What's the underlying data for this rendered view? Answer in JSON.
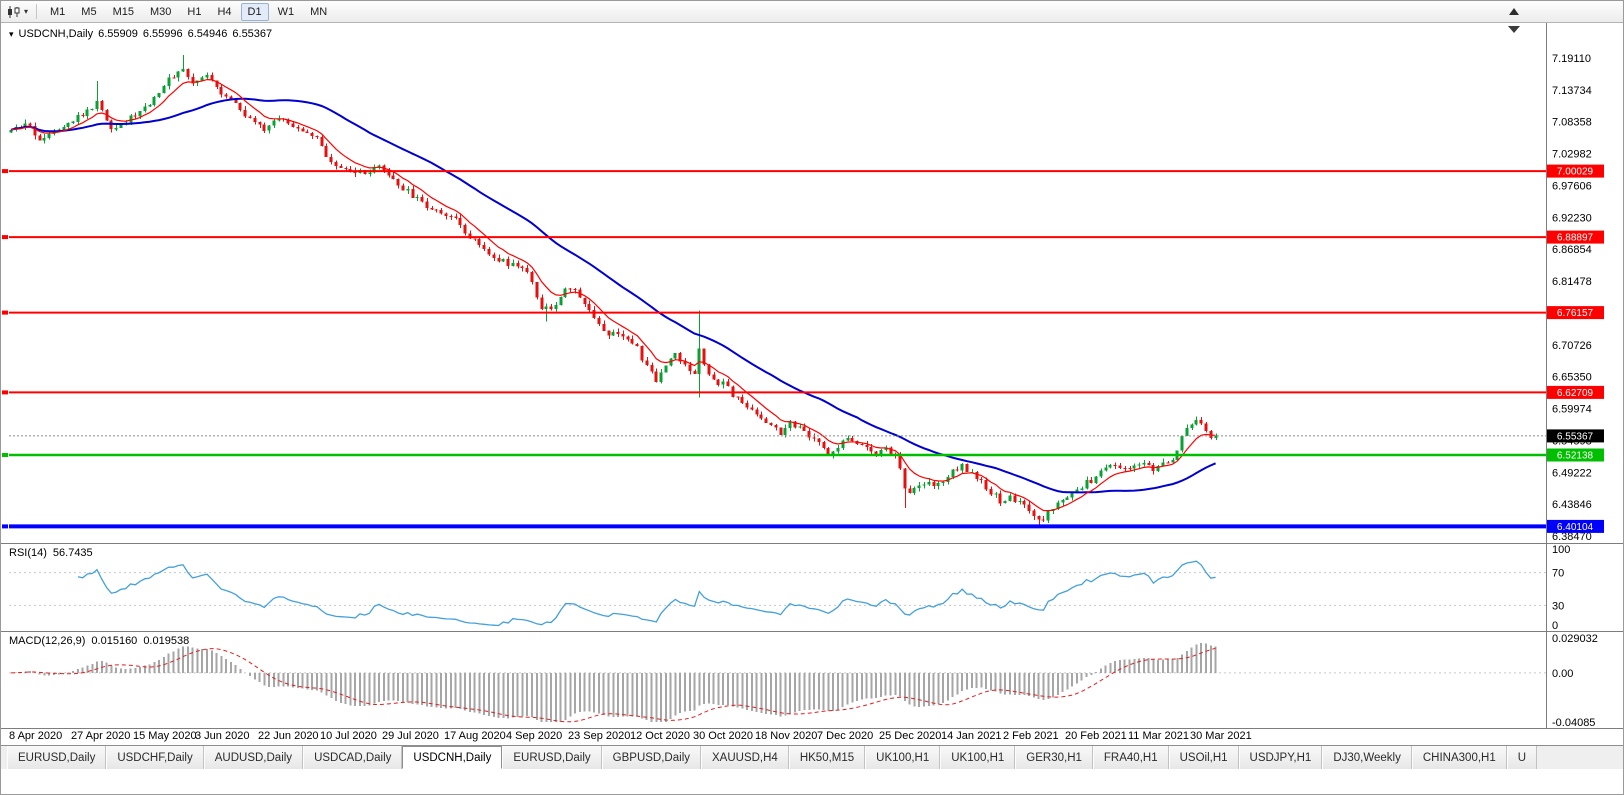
{
  "toolbar": {
    "timeframes": [
      {
        "label": "M1"
      },
      {
        "label": "M5"
      },
      {
        "label": "M15"
      },
      {
        "label": "M30"
      },
      {
        "label": "H1"
      },
      {
        "label": "H4"
      },
      {
        "label": "D1"
      },
      {
        "label": "W1"
      },
      {
        "label": "MN"
      }
    ],
    "active_timeframe": "D1"
  },
  "quote": {
    "symbol_period": "USDCNH,Daily",
    "open": "6.55909",
    "high": "6.55996",
    "low": "6.54946",
    "close": "6.55367"
  },
  "indicators": {
    "rsi": {
      "name": "RSI(14)",
      "value": "56.7435",
      "levels": [
        "100",
        "70",
        "30",
        "0"
      ],
      "color": "#44A0DC"
    },
    "macd": {
      "name": "MACD(12,26,9)",
      "value_main": "0.015160",
      "value_signal": "0.019538",
      "axis_labels": [
        "0.029032",
        "0.00",
        "-0.04085"
      ],
      "axis_max": 0.029032,
      "axis_min": -0.04085
    }
  },
  "chart_data": {
    "type": "candlestick",
    "symbol": "USDCNH",
    "period": "Daily",
    "num_candles": 253,
    "current_price": 6.55367,
    "y_axis_top_label_value": 7.1911,
    "y_axis_step": 0.05376,
    "y_axis_labels": [
      "7.19110",
      "7.13734",
      "7.08358",
      "7.02982",
      "6.97606",
      "6.92230",
      "6.86854",
      "6.81478",
      "6.76102",
      "6.70726",
      "6.65350",
      "6.59974",
      "6.54598",
      "6.49222",
      "6.43846",
      "6.38470"
    ],
    "x_axis_labels": [
      "8 Apr 2020",
      "27 Apr 2020",
      "15 May 2020",
      "3 Jun 2020",
      "22 Jun 2020",
      "10 Jul 2020",
      "29 Jul 2020",
      "17 Aug 2020",
      "4 Sep 2020",
      "23 Sep 2020",
      "12 Oct 2020",
      "30 Oct 2020",
      "18 Nov 2020",
      "7 Dec 2020",
      "25 Dec 2020",
      "14 Jan 2021",
      "2 Feb 2021",
      "20 Feb 2021",
      "11 Mar 2021",
      "30 Mar 2021"
    ],
    "candles_per_x_label": 13,
    "up_color": "#09A134",
    "down_color": "#E31212",
    "ma_fast": {
      "period": 8,
      "color": "#FF0000"
    },
    "ma_slow": {
      "period": 34,
      "color": "#0000D0"
    },
    "horizontal_lines": [
      {
        "value": 7.00029,
        "label": "7.00029",
        "color": "#FF0000",
        "width": 2
      },
      {
        "value": 6.88897,
        "label": "6.88897",
        "color": "#FF0000",
        "width": 2
      },
      {
        "value": 6.76157,
        "label": "6.76157",
        "color": "#FF0000",
        "width": 2
      },
      {
        "value": 6.62709,
        "label": "6.62709",
        "color": "#FF0000",
        "width": 2
      },
      {
        "value": 6.52138,
        "label": "6.52138",
        "color": "#00BF00",
        "width": 2.5
      },
      {
        "value": 6.40104,
        "label": "6.40104",
        "color": "#0000FF",
        "width": 4
      }
    ],
    "current_price_tag": {
      "label": "6.55367",
      "color": "#000000"
    },
    "price_path": [
      [
        0,
        7.065
      ],
      [
        3,
        7.08
      ],
      [
        6,
        7.055
      ],
      [
        9,
        7.07
      ],
      [
        12,
        7.085
      ],
      [
        15,
        7.095
      ],
      [
        18,
        7.115
      ],
      [
        21,
        7.075
      ],
      [
        24,
        7.085
      ],
      [
        27,
        7.1
      ],
      [
        30,
        7.125
      ],
      [
        33,
        7.155
      ],
      [
        36,
        7.175
      ],
      [
        38,
        7.145
      ],
      [
        41,
        7.165
      ],
      [
        44,
        7.135
      ],
      [
        47,
        7.115
      ],
      [
        50,
        7.085
      ],
      [
        53,
        7.07
      ],
      [
        56,
        7.09
      ],
      [
        59,
        7.075
      ],
      [
        62,
        7.068
      ],
      [
        64,
        7.06
      ],
      [
        66,
        7.02
      ],
      [
        68,
        7.005
      ],
      [
        71,
        7.0
      ],
      [
        74,
        6.995
      ],
      [
        77,
        7.005
      ],
      [
        80,
        6.985
      ],
      [
        83,
        6.965
      ],
      [
        86,
        6.945
      ],
      [
        89,
        6.935
      ],
      [
        92,
        6.925
      ],
      [
        95,
        6.9
      ],
      [
        98,
        6.875
      ],
      [
        101,
        6.855
      ],
      [
        104,
        6.845
      ],
      [
        107,
        6.835
      ],
      [
        109,
        6.815
      ],
      [
        111,
        6.77
      ],
      [
        113,
        6.765
      ],
      [
        115,
        6.79
      ],
      [
        117,
        6.805
      ],
      [
        119,
        6.79
      ],
      [
        121,
        6.765
      ],
      [
        123,
        6.745
      ],
      [
        125,
        6.725
      ],
      [
        127,
        6.73
      ],
      [
        129,
        6.715
      ],
      [
        131,
        6.7
      ],
      [
        133,
        6.67
      ],
      [
        135,
        6.645
      ],
      [
        137,
        6.675
      ],
      [
        139,
        6.695
      ],
      [
        141,
        6.67
      ],
      [
        143,
        6.655
      ],
      [
        144,
        6.7
      ],
      [
        145,
        6.675
      ],
      [
        147,
        6.65
      ],
      [
        149,
        6.64
      ],
      [
        151,
        6.625
      ],
      [
        153,
        6.61
      ],
      [
        155,
        6.6
      ],
      [
        157,
        6.585
      ],
      [
        159,
        6.57
      ],
      [
        161,
        6.56
      ],
      [
        163,
        6.575
      ],
      [
        165,
        6.565
      ],
      [
        167,
        6.55
      ],
      [
        169,
        6.54
      ],
      [
        171,
        6.525
      ],
      [
        173,
        6.535
      ],
      [
        175,
        6.55
      ],
      [
        177,
        6.545
      ],
      [
        179,
        6.53
      ],
      [
        181,
        6.525
      ],
      [
        183,
        6.53
      ],
      [
        185,
        6.52
      ],
      [
        186,
        6.5
      ],
      [
        187,
        6.47
      ],
      [
        188,
        6.455
      ],
      [
        189,
        6.46
      ],
      [
        191,
        6.475
      ],
      [
        193,
        6.47
      ],
      [
        195,
        6.48
      ],
      [
        197,
        6.495
      ],
      [
        199,
        6.505
      ],
      [
        201,
        6.49
      ],
      [
        203,
        6.475
      ],
      [
        205,
        6.46
      ],
      [
        207,
        6.445
      ],
      [
        209,
        6.45
      ],
      [
        211,
        6.44
      ],
      [
        213,
        6.425
      ],
      [
        215,
        6.41
      ],
      [
        216,
        6.408
      ],
      [
        217,
        6.425
      ],
      [
        219,
        6.44
      ],
      [
        221,
        6.445
      ],
      [
        223,
        6.465
      ],
      [
        225,
        6.475
      ],
      [
        227,
        6.485
      ],
      [
        229,
        6.5
      ],
      [
        231,
        6.505
      ],
      [
        233,
        6.5
      ],
      [
        235,
        6.505
      ],
      [
        237,
        6.51
      ],
      [
        239,
        6.5
      ],
      [
        241,
        6.505
      ],
      [
        243,
        6.515
      ],
      [
        244,
        6.53
      ],
      [
        245,
        6.55
      ],
      [
        246,
        6.565
      ],
      [
        247,
        6.575
      ],
      [
        248,
        6.578
      ],
      [
        249,
        6.57
      ],
      [
        250,
        6.558
      ],
      [
        251,
        6.548
      ],
      [
        252,
        6.5537
      ]
    ],
    "wick_events": [
      {
        "i": 18,
        "h": 7.152
      },
      {
        "i": 36,
        "h": 7.196
      },
      {
        "i": 112,
        "l": 6.747
      },
      {
        "i": 144,
        "h": 6.765,
        "l": 6.618
      },
      {
        "i": 187,
        "l": 6.432
      },
      {
        "i": 215,
        "l": 6.401
      },
      {
        "i": 248,
        "h": 6.586
      }
    ]
  },
  "tabs": {
    "items": [
      {
        "label": "EURUSD,Daily"
      },
      {
        "label": "USDCHF,Daily"
      },
      {
        "label": "AUDUSD,Daily"
      },
      {
        "label": "USDCAD,Daily"
      },
      {
        "label": "USDCNH,Daily"
      },
      {
        "label": "EURUSD,Daily"
      },
      {
        "label": "GBPUSD,Daily"
      },
      {
        "label": "XAUUSD,H4"
      },
      {
        "label": "HK50,M15"
      },
      {
        "label": "UK100,H1"
      },
      {
        "label": "UK100,H1"
      },
      {
        "label": "GER30,H1"
      },
      {
        "label": "FRA40,H1"
      },
      {
        "label": "USOil,H1"
      },
      {
        "label": "USDJPY,H1"
      },
      {
        "label": "DJ30,Weekly"
      },
      {
        "label": "CHINA300,H1"
      },
      {
        "label": "U"
      }
    ],
    "active_index": 4
  }
}
